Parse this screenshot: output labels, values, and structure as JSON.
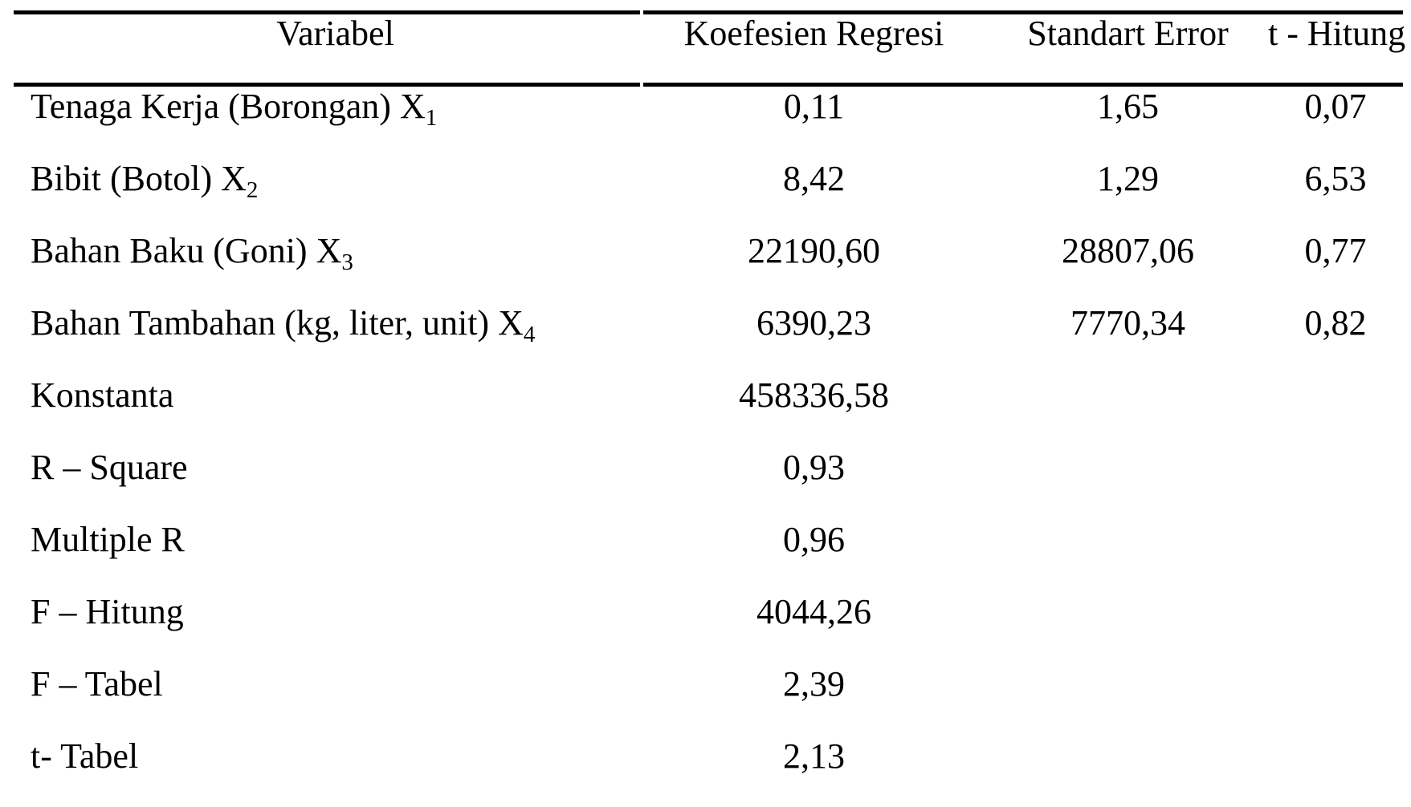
{
  "table": {
    "headers": {
      "variabel": "Variabel",
      "koefesien": "Koefesien Regresi",
      "standart_error": "Standart Error",
      "t_hitung": "t - Hitung"
    },
    "rows": [
      {
        "label": "Tenaga Kerja (Borongan) X",
        "sub": "1",
        "koefesien": "0,11",
        "standart_error": "1,65",
        "t_hitung": "0,07"
      },
      {
        "label": "Bibit (Botol) X",
        "sub": "2",
        "koefesien": "8,42",
        "standart_error": "1,29",
        "t_hitung": "6,53"
      },
      {
        "label": "Bahan Baku (Goni) X",
        "sub": "3",
        "koefesien": "22190,60",
        "standart_error": "28807,06",
        "t_hitung": "0,77"
      },
      {
        "label": "Bahan Tambahan (kg, liter, unit) X",
        "sub": "4",
        "koefesien": "6390,23",
        "standart_error": "7770,34",
        "t_hitung": "0,82"
      },
      {
        "label": "Konstanta",
        "sub": "",
        "koefesien": "458336,58",
        "standart_error": "",
        "t_hitung": ""
      },
      {
        "label": "R – Square",
        "sub": "",
        "koefesien": "0,93",
        "standart_error": "",
        "t_hitung": ""
      },
      {
        "label": "Multiple R",
        "sub": "",
        "koefesien": "0,96",
        "standart_error": "",
        "t_hitung": ""
      },
      {
        "label": "F – Hitung",
        "sub": "",
        "koefesien": "4044,26",
        "standart_error": "",
        "t_hitung": ""
      },
      {
        "label": "F – Tabel",
        "sub": "",
        "koefesien": "2,39",
        "standart_error": "",
        "t_hitung": ""
      },
      {
        "label": "t- Tabel",
        "sub": "",
        "koefesien": "2,13",
        "standart_error": "",
        "t_hitung": ""
      }
    ]
  }
}
